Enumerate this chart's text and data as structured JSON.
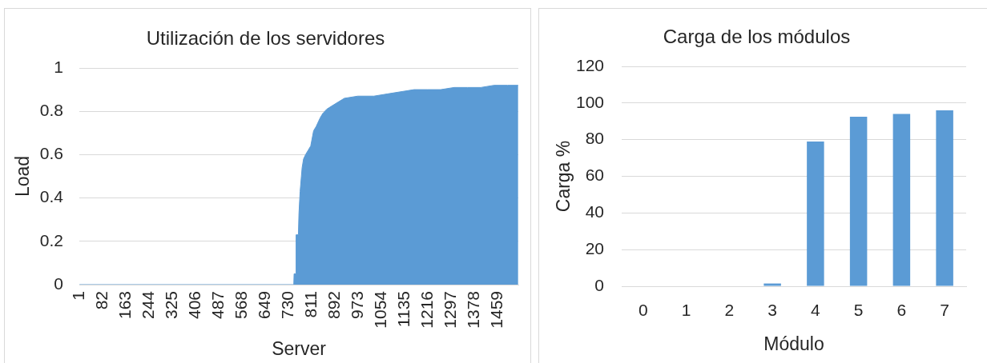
{
  "chart_data": [
    {
      "type": "area",
      "title": "Utilización de los servidores",
      "xlabel": "Server",
      "ylabel": "Load",
      "color": "#5b9bd5",
      "grid": "y",
      "x": [
        1,
        748,
        749,
        755,
        756,
        764,
        766,
        770,
        777,
        782,
        789,
        798,
        807,
        817,
        826,
        840,
        849,
        863,
        887,
        924,
        971,
        1027,
        1073,
        1120,
        1167,
        1213,
        1260,
        1307,
        1353,
        1400,
        1446,
        1493,
        1530
      ],
      "values": [
        0,
        0,
        0.05,
        0.05,
        0.23,
        0.23,
        0.33,
        0.43,
        0.54,
        0.58,
        0.6,
        0.62,
        0.64,
        0.71,
        0.73,
        0.77,
        0.79,
        0.81,
        0.83,
        0.86,
        0.87,
        0.87,
        0.88,
        0.89,
        0.9,
        0.9,
        0.9,
        0.91,
        0.91,
        0.91,
        0.92,
        0.92,
        0.92
      ],
      "xlim": [
        0.5,
        1530.5
      ],
      "xticks": [
        1,
        82,
        163,
        244,
        325,
        406,
        487,
        568,
        649,
        730,
        811,
        892,
        973,
        1054,
        1135,
        1216,
        1297,
        1378,
        1459
      ],
      "ylim": [
        0,
        1
      ],
      "yticks": [
        0,
        0.2,
        0.4,
        0.6,
        0.8,
        1
      ]
    },
    {
      "type": "bar",
      "title": "Carga de los módulos",
      "xlabel": "Módulo",
      "ylabel": "Carga %",
      "color": "#5b9bd5",
      "grid": "y",
      "categories": [
        "0",
        "1",
        "2",
        "3",
        "4",
        "5",
        "6",
        "7"
      ],
      "values": [
        0,
        0,
        0,
        1.5,
        79,
        92.5,
        94,
        96
      ],
      "ylim": [
        0,
        120
      ],
      "yticks": [
        0,
        20,
        40,
        60,
        80,
        100,
        120
      ]
    }
  ]
}
